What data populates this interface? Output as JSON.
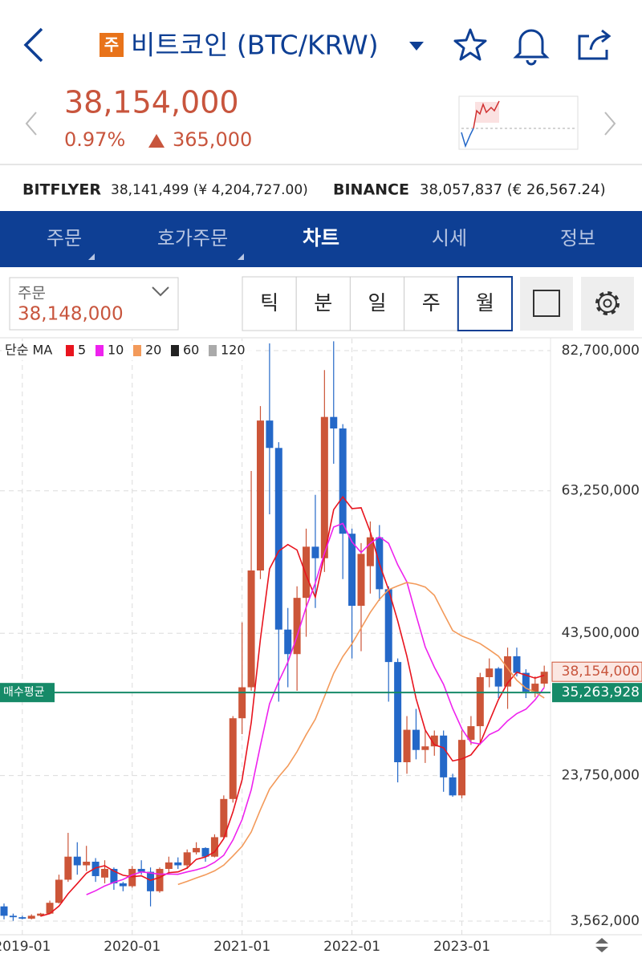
{
  "header": {
    "badge": "주",
    "title": "비트코인 (BTC/KRW)"
  },
  "quote": {
    "price": "38,154,000",
    "change_pct": "0.97%",
    "change": "365,000"
  },
  "exchanges": [
    {
      "name": "BITFLYER",
      "value": "38,141,499 (¥ 4,204,727.00)"
    },
    {
      "name": "BINANCE",
      "value": "38,057,837 (€ 26,567.24)"
    }
  ],
  "tabs": [
    "주문",
    "호가주문",
    "차트",
    "시세",
    "정보"
  ],
  "order": {
    "label": "주문",
    "value": "38,148,000"
  },
  "periods": [
    "틱",
    "분",
    "일",
    "주",
    "월"
  ],
  "chart_data": {
    "type": "candlestick",
    "legend_title": "단순 MA",
    "ma_periods": [
      5,
      10,
      20,
      60,
      120
    ],
    "ma_colors": [
      "#e8141e",
      "#ee22ee",
      "#f39a5a",
      "#222222",
      "#aaaaaa"
    ],
    "up_color": "#cc5538",
    "down_color": "#2468c8",
    "categories": [
      null,
      null,
      "2019-01",
      null,
      null,
      null,
      null,
      null,
      null,
      null,
      null,
      null,
      null,
      null,
      "2020-01",
      null,
      null,
      null,
      null,
      null,
      null,
      null,
      null,
      null,
      null,
      null,
      "2021-01",
      null,
      null,
      null,
      null,
      null,
      null,
      null,
      null,
      null,
      null,
      null,
      "2022-01",
      null,
      null,
      null,
      null,
      null,
      null,
      null,
      null,
      null,
      null,
      null,
      "2023-01",
      null,
      null,
      null,
      null,
      null,
      null,
      null,
      null,
      null
    ],
    "open": [
      5600000,
      4300000,
      4100000,
      3900000,
      4300000,
      4600000,
      6100000,
      9300000,
      12500000,
      11300000,
      11800000,
      9600000,
      10800000,
      8800000,
      8400000,
      10800000,
      10400000,
      7700000,
      10800000,
      11700000,
      11300000,
      13100000,
      13700000,
      12500000,
      15200000,
      20500000,
      31700000,
      36000000,
      52200000,
      73000000,
      69200000,
      44000000,
      40600000,
      48400000,
      55500000,
      53900000,
      73500000,
      71900000,
      57300000,
      47300000,
      52800000,
      56800000,
      49600000,
      39500000,
      25600000,
      30100000,
      27300000,
      27800000,
      29300000,
      23500000,
      21000000,
      28700000,
      30600000,
      37400000,
      38600000,
      36100000,
      40300000,
      38000000,
      35400000,
      36500000
    ],
    "high": [
      6000000,
      4600000,
      4300000,
      4500000,
      4700000,
      6400000,
      10000000,
      15800000,
      14500000,
      14000000,
      12300000,
      12000000,
      11000000,
      9000000,
      11200000,
      12000000,
      11000000,
      11000000,
      12500000,
      12400000,
      13500000,
      14500000,
      13800000,
      15600000,
      21000000,
      32000000,
      45000000,
      66000000,
      75000000,
      83700000,
      70000000,
      47000000,
      50000000,
      58000000,
      62700000,
      80000000,
      84000000,
      72500000,
      58000000,
      56000000,
      59000000,
      58500000,
      50000000,
      40000000,
      32000000,
      33000000,
      30000000,
      30000000,
      30000000,
      24000000,
      30000000,
      32000000,
      38000000,
      40000000,
      38800000,
      41500000,
      41500000,
      38500000,
      37500000,
      39000000
    ],
    "low": [
      3800000,
      3600000,
      3800000,
      3800000,
      4200000,
      4500000,
      6000000,
      9000000,
      10000000,
      10500000,
      9000000,
      8800000,
      7900000,
      7700000,
      8200000,
      10000000,
      5600000,
      7500000,
      10300000,
      10800000,
      10800000,
      12800000,
      11800000,
      12400000,
      15000000,
      20000000,
      29500000,
      35500000,
      51000000,
      60000000,
      34000000,
      36000000,
      35500000,
      43000000,
      47000000,
      52000000,
      67000000,
      51000000,
      40000000,
      41000000,
      49000000,
      48000000,
      34000000,
      22800000,
      24000000,
      26000000,
      25500000,
      26500000,
      21500000,
      20800000,
      20600000,
      28000000,
      28000000,
      36000000,
      34500000,
      33000000,
      37500000,
      34500000,
      34600000,
      36000000
    ],
    "close": [
      4300000,
      4100000,
      3900000,
      4300000,
      4600000,
      6100000,
      9300000,
      12500000,
      11300000,
      11800000,
      9800000,
      10800000,
      8800000,
      8400000,
      10800000,
      10400000,
      7700000,
      10800000,
      11700000,
      11300000,
      13100000,
      13700000,
      12500000,
      15200000,
      20500000,
      31700000,
      36000000,
      52200000,
      73000000,
      69200000,
      44000000,
      40600000,
      48400000,
      55500000,
      53900000,
      73500000,
      71900000,
      57300000,
      47300000,
      54500000,
      56800000,
      49600000,
      39500000,
      25600000,
      30100000,
      27300000,
      27800000,
      29300000,
      23500000,
      21000000,
      28700000,
      30600000,
      37400000,
      38600000,
      36100000,
      40300000,
      38000000,
      35400000,
      36500000,
      38154000
    ],
    "ylim": [
      1670000,
      84370000
    ],
    "yticks": [
      {
        "value": 82700000,
        "label": "82,700,000"
      },
      {
        "value": 63250000,
        "label": "63,250,000"
      },
      {
        "value": 43500000,
        "label": "43,500,000"
      },
      {
        "value": 23750000,
        "label": "23,750,000"
      },
      {
        "value": 3562000,
        "label": "3,562,000"
      }
    ],
    "grid": true,
    "current_price": {
      "value": 38154000,
      "label": "38,154,000"
    },
    "avg_price": {
      "name": "매수평균",
      "value": 35263928,
      "label": "35,263,928"
    }
  }
}
